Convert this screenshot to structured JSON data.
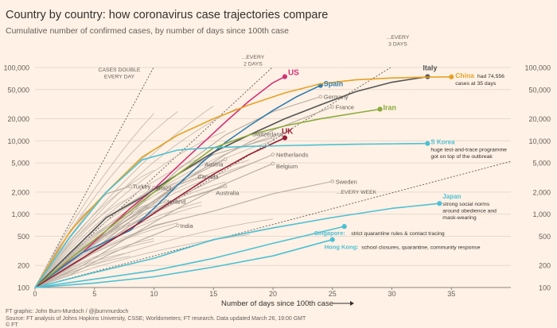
{
  "header": {
    "title": "Country by country: how coronavirus case trajectories compare",
    "subtitle": "Cumulative number of confirmed cases, by number of days since 100th case"
  },
  "footer": {
    "line1": "FT graphic: John Burn-Murdoch / @jburnmurdoch",
    "line2": "Source: FT analysis of Johns Hopkins University, CSSE; Worldometers; FT research. Data updated March 26, 19:00 GMT",
    "line3": "© FT"
  },
  "chart_data": {
    "type": "line",
    "y_scale": "log",
    "xlabel": "Number of days since 100th case",
    "xlim": [
      0,
      40
    ],
    "ylim": [
      100,
      100000
    ],
    "x_ticks": [
      0,
      5,
      10,
      15,
      20,
      25,
      30,
      35
    ],
    "x_tick_labels": [
      "0",
      "5",
      "10",
      "15",
      "20",
      "25",
      "30",
      "35"
    ],
    "y_ticks": [
      100,
      200,
      500,
      1000,
      2000,
      5000,
      10000,
      20000,
      50000,
      100000
    ],
    "y_tick_labels": [
      "100",
      "200",
      "500",
      "1,000",
      "2,000",
      "5,000",
      "10,000",
      "20,000",
      "50,000",
      "100,000"
    ],
    "reference_lines": [
      {
        "label_lines": [
          "CASES DOUBLE",
          "EVERY DAY"
        ],
        "doubling_days": 1
      },
      {
        "label_lines": [
          "...EVERY",
          "2 DAYS"
        ],
        "doubling_days": 2
      },
      {
        "label_lines": [
          "...EVERY",
          "3 DAYS"
        ],
        "doubling_days": 3
      },
      {
        "label_lines": [
          "...EVERY WEEK"
        ],
        "doubling_days": 7
      }
    ],
    "series": [
      {
        "name": "US",
        "color": "#d33278",
        "x": [
          0,
          2,
          4,
          6,
          8,
          10,
          12,
          14,
          16,
          18,
          20,
          21
        ],
        "y": [
          100,
          180,
          300,
          600,
          1200,
          2200,
          4500,
          9000,
          18000,
          35000,
          62000,
          75000
        ],
        "label_lines": [
          "US"
        ],
        "note_lines": []
      },
      {
        "name": "Spain",
        "color": "#2e7dae",
        "x": [
          0,
          4,
          8,
          10,
          12,
          14,
          16,
          18,
          20,
          22,
          24
        ],
        "y": [
          100,
          300,
          600,
          1200,
          2500,
          5000,
          9500,
          16000,
          26000,
          40000,
          57000
        ],
        "label_lines": [
          "Spain"
        ],
        "note_lines": []
      },
      {
        "name": "Italy",
        "color": "#555555",
        "x": [
          0,
          3,
          6,
          9,
          12,
          15,
          18,
          21,
          24,
          27,
          30,
          33
        ],
        "y": [
          100,
          300,
          900,
          1700,
          3500,
          7000,
          12000,
          20000,
          31000,
          47000,
          63000,
          75000
        ],
        "label_lines": [
          "Italy"
        ],
        "note_lines": []
      },
      {
        "name": "China",
        "color": "#e5a225",
        "x": [
          0,
          3,
          6,
          9,
          12,
          15,
          18,
          21,
          24,
          27,
          30,
          33,
          35
        ],
        "y": [
          100,
          600,
          2000,
          6000,
          12000,
          20000,
          31000,
          45000,
          60000,
          68000,
          72000,
          74000,
          74556
        ],
        "label_lines": [
          "China"
        ],
        "note_lines": [
          "had 74,556",
          "cases at 35 days"
        ]
      },
      {
        "name": "Iran",
        "color": "#8aab3c",
        "x": [
          0,
          3,
          6,
          9,
          12,
          15,
          18,
          21,
          24,
          27,
          29
        ],
        "y": [
          100,
          250,
          600,
          1500,
          3500,
          8000,
          12000,
          16000,
          20000,
          24000,
          27000
        ],
        "label_lines": [
          "Iran"
        ],
        "note_lines": []
      },
      {
        "name": "UK",
        "color": "#9a2037",
        "x": [
          0,
          3,
          6,
          9,
          12,
          15,
          18,
          21
        ],
        "y": [
          100,
          200,
          400,
          800,
          1700,
          3500,
          6500,
          11000
        ],
        "label_lines": [
          "UK"
        ],
        "note_lines": []
      },
      {
        "name": "S Korea",
        "color": "#4cc1d4",
        "x": [
          0,
          3,
          6,
          9,
          12,
          15,
          18,
          21,
          24,
          27,
          30,
          33
        ],
        "y": [
          100,
          500,
          2000,
          5500,
          7500,
          8100,
          8400,
          8600,
          8800,
          9000,
          9100,
          9200
        ],
        "label_lines": [
          "S Korea"
        ],
        "note_lines": [
          "huge test-and-trace programme",
          "got on top of the outbreak"
        ]
      },
      {
        "name": "Japan",
        "color": "#4cc1d4",
        "x": [
          0,
          5,
          10,
          15,
          20,
          25,
          30,
          34
        ],
        "y": [
          100,
          160,
          250,
          450,
          650,
          900,
          1200,
          1400
        ],
        "label_lines": [
          "Japan"
        ],
        "note_lines": [
          "strong social norms",
          "around obedience and",
          "mask-wearing"
        ]
      },
      {
        "name": "Singapore",
        "color": "#4cc1d4",
        "x": [
          0,
          5,
          10,
          15,
          20,
          26
        ],
        "y": [
          100,
          130,
          170,
          250,
          400,
          680
        ],
        "label_lines": [
          "Singapore:"
        ],
        "note_lines": [
          "strict quarantine rules & contact tracing"
        ]
      },
      {
        "name": "Hong Kong",
        "color": "#4cc1d4",
        "x": [
          0,
          5,
          10,
          15,
          20,
          25
        ],
        "y": [
          100,
          115,
          140,
          190,
          270,
          450
        ],
        "label_lines": [
          "Hong Kong:"
        ],
        "note_lines": [
          "school closures, quarantine, community response"
        ]
      },
      {
        "name": "Germany",
        "color": "#b8aca0",
        "x": [
          0,
          4,
          8,
          12,
          16,
          20,
          24
        ],
        "y": [
          100,
          300,
          1000,
          4000,
          12000,
          25000,
          40000
        ],
        "label_lines": [
          "Germany"
        ],
        "note_lines": []
      },
      {
        "name": "France",
        "color": "#b8aca0",
        "x": [
          0,
          4,
          8,
          12,
          16,
          20,
          25
        ],
        "y": [
          100,
          300,
          900,
          2500,
          6500,
          14000,
          29000
        ],
        "label_lines": [
          "France"
        ],
        "note_lines": []
      },
      {
        "name": "Switzerland",
        "color": "#b8aca0",
        "x": [
          0,
          3,
          6,
          9,
          12,
          15,
          20
        ],
        "y": [
          100,
          250,
          600,
          1500,
          3500,
          6500,
          11000
        ],
        "label_lines": [
          "Switzerland"
        ],
        "note_lines": []
      },
      {
        "name": "Netherlands",
        "color": "#b8aca0",
        "x": [
          0,
          4,
          8,
          12,
          16,
          20
        ],
        "y": [
          100,
          250,
          700,
          1700,
          3500,
          6500
        ],
        "label_lines": [
          "Netherlands"
        ],
        "note_lines": []
      },
      {
        "name": "Belgium",
        "color": "#b8aca0",
        "x": [
          0,
          4,
          8,
          12,
          16,
          20
        ],
        "y": [
          100,
          200,
          500,
          1200,
          2600,
          4900
        ],
        "label_lines": [
          "Belgium"
        ],
        "note_lines": []
      },
      {
        "name": "Austria",
        "color": "#b8aca0",
        "x": [
          0,
          4,
          8,
          12,
          16
        ],
        "y": [
          100,
          300,
          900,
          2600,
          5600
        ],
        "label_lines": [
          "Austria"
        ],
        "note_lines": []
      },
      {
        "name": "Canada",
        "color": "#b8aca0",
        "x": [
          0,
          4,
          8,
          12,
          14
        ],
        "y": [
          100,
          250,
          800,
          2500,
          3300
        ],
        "label_lines": [
          "Canada"
        ],
        "note_lines": []
      },
      {
        "name": "Australia",
        "color": "#b8aca0",
        "x": [
          0,
          4,
          8,
          12,
          16
        ],
        "y": [
          100,
          250,
          700,
          1500,
          2400
        ],
        "label_lines": [
          "Australia"
        ],
        "note_lines": []
      },
      {
        "name": "Sweden",
        "color": "#b8aca0",
        "x": [
          0,
          5,
          10,
          15,
          20,
          25
        ],
        "y": [
          100,
          300,
          700,
          1100,
          1900,
          2800
        ],
        "label_lines": [
          "Sweden"
        ],
        "note_lines": []
      },
      {
        "name": "Turkey",
        "color": "#b8aca0",
        "x": [
          0,
          2,
          4,
          6,
          8
        ],
        "y": [
          100,
          350,
          950,
          1900,
          2400
        ],
        "label_lines": [
          "Turkey"
        ],
        "note_lines": []
      },
      {
        "name": "Brazil",
        "color": "#b8aca0",
        "x": [
          0,
          3,
          6,
          9,
          10
        ],
        "y": [
          100,
          300,
          900,
          1800,
          2300
        ],
        "label_lines": [
          "Brazil"
        ],
        "note_lines": []
      },
      {
        "name": "Ireland",
        "color": "#b8aca0",
        "x": [
          0,
          3,
          6,
          9,
          11
        ],
        "y": [
          100,
          250,
          550,
          1100,
          1500
        ],
        "label_lines": [
          "Ireland"
        ],
        "note_lines": []
      },
      {
        "name": "India",
        "color": "#b8aca0",
        "x": [
          0,
          3,
          6,
          9,
          12
        ],
        "y": [
          100,
          150,
          270,
          450,
          700
        ],
        "label_lines": [
          "India"
        ],
        "note_lines": []
      }
    ]
  }
}
